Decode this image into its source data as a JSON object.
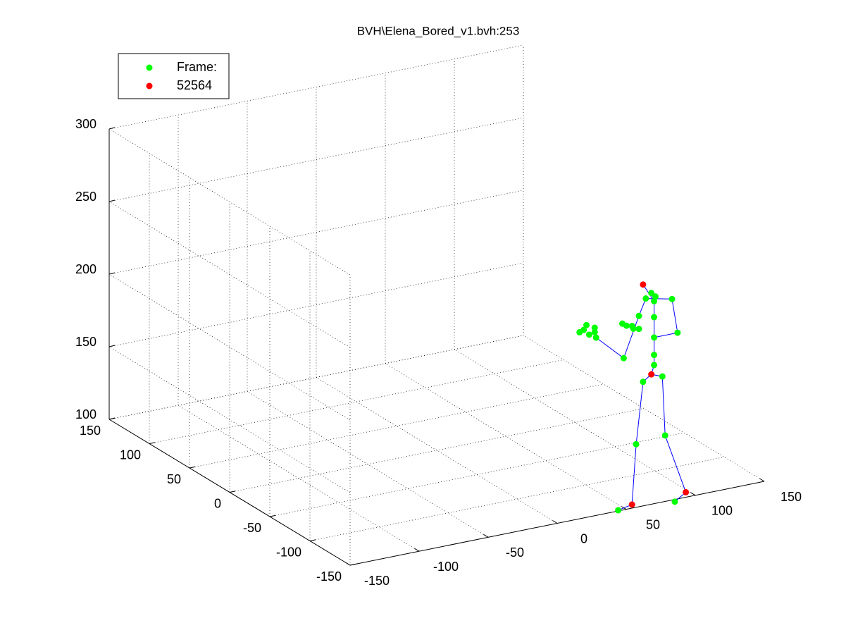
{
  "chart_data": {
    "type": "scatter3d",
    "title": "BVH\\Elena_Bored_v1.bvh:253",
    "xlim": [
      -150,
      150
    ],
    "xticks": [
      -150,
      -100,
      -50,
      0,
      50,
      100,
      150
    ],
    "ylim": [
      -150,
      150
    ],
    "yticks": [
      -150,
      -100,
      -50,
      0,
      50,
      100,
      150
    ],
    "zlim": [
      100,
      300
    ],
    "zticks": [
      100,
      150,
      200,
      250,
      300
    ],
    "grid": true,
    "legend": "upper left",
    "series": [
      {
        "kind": "line",
        "color": "#0000ff",
        "x": [
          50,
          60,
          63,
          68,
          74,
          82,
          84,
          99,
          91,
          null,
          74,
          76,
          76,
          76,
          76,
          76,
          68,
          null,
          70,
          89,
          93,
          76,
          null,
          70,
          65,
          54,
          34
        ],
        "y": [
          -140,
          -140,
          -140,
          -140,
          -140,
          -140,
          -140,
          -140,
          -140,
          null,
          -140,
          -140,
          -140,
          -140,
          -140,
          -140,
          -140,
          null,
          -140,
          -140,
          -140,
          -140,
          null,
          -140,
          -140,
          -140,
          -140
        ],
        "z": [
          96,
          98,
          139,
          181,
          185,
          182,
          141,
          99,
          94,
          null,
          185,
          191,
          198,
          210,
          224,
          235,
          248,
          null,
          238,
          234,
          210,
          210,
          null,
          238,
          227,
          200,
          218
        ]
      },
      {
        "name": "Frame:",
        "kind": "points",
        "color": "#00ff00",
        "x": [
          70,
          74,
          77,
          76,
          89,
          93,
          76,
          76,
          76,
          82,
          68,
          63,
          84,
          50,
          91,
          65,
          61,
          54,
          34,
          25,
          22,
          27,
          33,
          33,
          29,
          53,
          56,
          60,
          65,
          76
        ],
        "y": [
          -140,
          -140,
          -140,
          -140,
          -140,
          -140,
          -140,
          -140,
          -140,
          -140,
          -140,
          -140,
          -140,
          -140,
          -140,
          -140,
          -140,
          -140,
          -140,
          -140,
          -140,
          -140,
          -140,
          -140,
          -140,
          -140,
          -140,
          -140,
          -140,
          -140
        ],
        "z": [
          238,
          241,
          238,
          235,
          234,
          210,
          210,
          198,
          191,
          182,
          181,
          139,
          141,
          96,
          94,
          227,
          219,
          200,
          218,
          225,
          224,
          228,
          225,
          222,
          221,
          224,
          222,
          221,
          218,
          224
        ]
      },
      {
        "name": "52564",
        "kind": "points",
        "color": "#ff0000",
        "x": [
          68,
          74,
          60,
          99
        ],
        "y": [
          -140,
          -140,
          -140,
          -140
        ],
        "z": [
          248,
          185,
          98,
          99
        ]
      }
    ]
  }
}
